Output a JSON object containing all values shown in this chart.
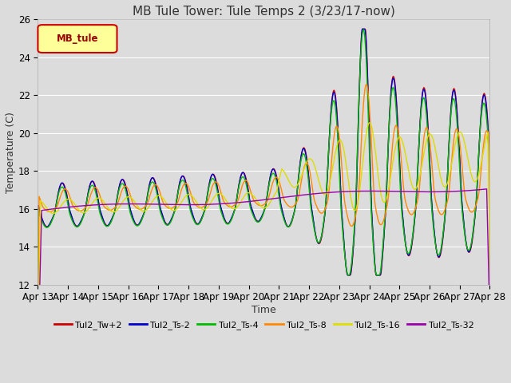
{
  "title": "MB Tule Tower: Tule Temps 2 (3/23/17-now)",
  "xlabel": "Time",
  "ylabel": "Temperature (C)",
  "ylim": [
    12,
    26
  ],
  "yticks": [
    12,
    14,
    16,
    18,
    20,
    22,
    24,
    26
  ],
  "xlim": [
    0,
    15
  ],
  "xtick_labels": [
    "Apr 13",
    "Apr 14",
    "Apr 15",
    "Apr 16",
    "Apr 17",
    "Apr 18",
    "Apr 19",
    "Apr 20",
    "Apr 21",
    "Apr 22",
    "Apr 23",
    "Apr 24",
    "Apr 25",
    "Apr 26",
    "Apr 27",
    "Apr 28"
  ],
  "background_color": "#dcdcdc",
  "plot_bg_color": "#dcdcdc",
  "legend_label": "MB_tule",
  "series_colors": {
    "Tul2_Tw+2": "#cc0000",
    "Tul2_Ts-2": "#0000cc",
    "Tul2_Ts-4": "#00bb00",
    "Tul2_Ts-8": "#ff8800",
    "Tul2_Ts-16": "#dddd00",
    "Tul2_Ts-32": "#9900aa"
  },
  "title_fontsize": 11,
  "axis_fontsize": 9,
  "tick_fontsize": 8.5
}
